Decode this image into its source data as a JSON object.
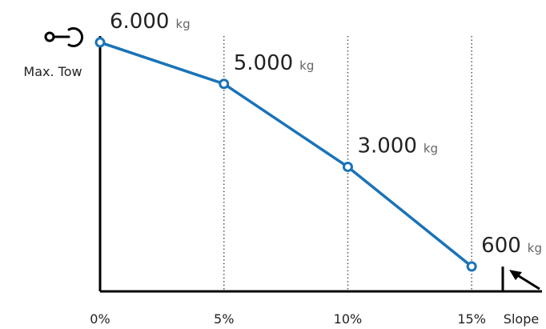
{
  "chart_data": {
    "type": "line",
    "title": "",
    "xlabel": "Slope",
    "ylabel": "Max. Tow",
    "categories": [
      "0%",
      "5%",
      "10%",
      "15%"
    ],
    "x": [
      0,
      5,
      10,
      15
    ],
    "xlim": [
      0,
      18
    ],
    "ylim": [
      0,
      6500
    ],
    "series": [
      {
        "values": [
          6000,
          5000,
          3000,
          600
        ],
        "value_labels": [
          "6.000",
          "5.000",
          "3.000",
          "600"
        ],
        "color": "#1a73b8"
      }
    ],
    "unit": "kg",
    "grid": "vertical dotted lines at 5%, 10%, 15%",
    "icons": {
      "y_axis": "tow-hook-icon",
      "x_axis": "slope-icon"
    }
  }
}
